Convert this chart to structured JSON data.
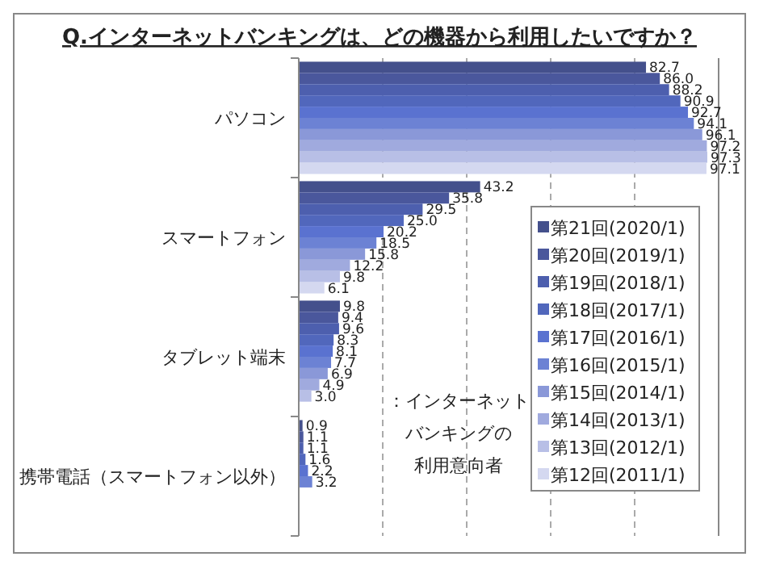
{
  "chart_data": {
    "type": "bar",
    "orientation": "horizontal",
    "title": "Q.インターネットバンキングは、どの機器から利用したいですか？",
    "categories": [
      "パソコン",
      "スマートフォン",
      "タブレット端末",
      "携帯電話（スマートフォン以外）"
    ],
    "series": [
      {
        "name": "第21回(2020/1)",
        "color": "#44508c",
        "values": [
          82.7,
          43.2,
          9.8,
          0.9
        ],
        "value_labels": [
          "82.7",
          "43.2",
          "9.8",
          "0.9"
        ]
      },
      {
        "name": "第20回(2019/1)",
        "color": "#4a579c",
        "values": [
          86.0,
          35.8,
          9.4,
          1.1
        ],
        "value_labels": [
          "86.0",
          "35.8",
          "9.4",
          "1.1"
        ]
      },
      {
        "name": "第19回(2018/1)",
        "color": "#4d5fae",
        "values": [
          88.2,
          29.5,
          9.6,
          1.1
        ],
        "value_labels": [
          "88.2",
          "29.5",
          "9.6",
          "1.1"
        ]
      },
      {
        "name": "第18回(2017/1)",
        "color": "#5167bc",
        "values": [
          90.9,
          25.0,
          8.3,
          1.6
        ],
        "value_labels": [
          "90.9",
          "25.0",
          "8.3",
          "1.6"
        ]
      },
      {
        "name": "第17回(2016/1)",
        "color": "#5a72d0",
        "values": [
          92.7,
          20.2,
          8.1,
          2.2
        ],
        "value_labels": [
          "92.7",
          "20.2",
          "8.1",
          "2.2"
        ]
      },
      {
        "name": "第16回(2015/1)",
        "color": "#6c82d4",
        "values": [
          94.1,
          18.5,
          7.7,
          3.2
        ],
        "value_labels": [
          "94.1",
          "18.5",
          "7.7",
          "3.2"
        ]
      },
      {
        "name": "第15回(2014/1)",
        "color": "#8a98d8",
        "values": [
          96.1,
          15.8,
          6.9,
          null
        ],
        "value_labels": [
          "96.1",
          "15.8",
          "6.9",
          null
        ]
      },
      {
        "name": "第14回(2013/1)",
        "color": "#a0aade",
        "values": [
          97.2,
          12.2,
          4.9,
          null
        ],
        "value_labels": [
          "97.2",
          "12.2",
          "4.9",
          null
        ]
      },
      {
        "name": "第13回(2012/1)",
        "color": "#b8bfe6",
        "values": [
          97.3,
          9.8,
          3.0,
          null
        ],
        "value_labels": [
          "97.3",
          "9.8",
          "3.0",
          null
        ]
      },
      {
        "name": "第12回(2011/1)",
        "color": "#d4d8f0",
        "values": [
          97.1,
          6.1,
          null,
          null
        ],
        "value_labels": [
          "97.1",
          "6.1",
          null,
          null
        ]
      }
    ],
    "xlim": [
      0,
      100
    ],
    "xticks": [
      {
        "value": 20,
        "label": null
      },
      {
        "value": 40,
        "label": null
      },
      {
        "value": 60,
        "label": null
      },
      {
        "value": 80,
        "label": null
      }
    ],
    "tick_labels": "y",
    "grid": "x",
    "legend": "bottom right",
    "annotations": [
      "：インターネット",
      "バンキングの",
      "利用意向者"
    ]
  }
}
